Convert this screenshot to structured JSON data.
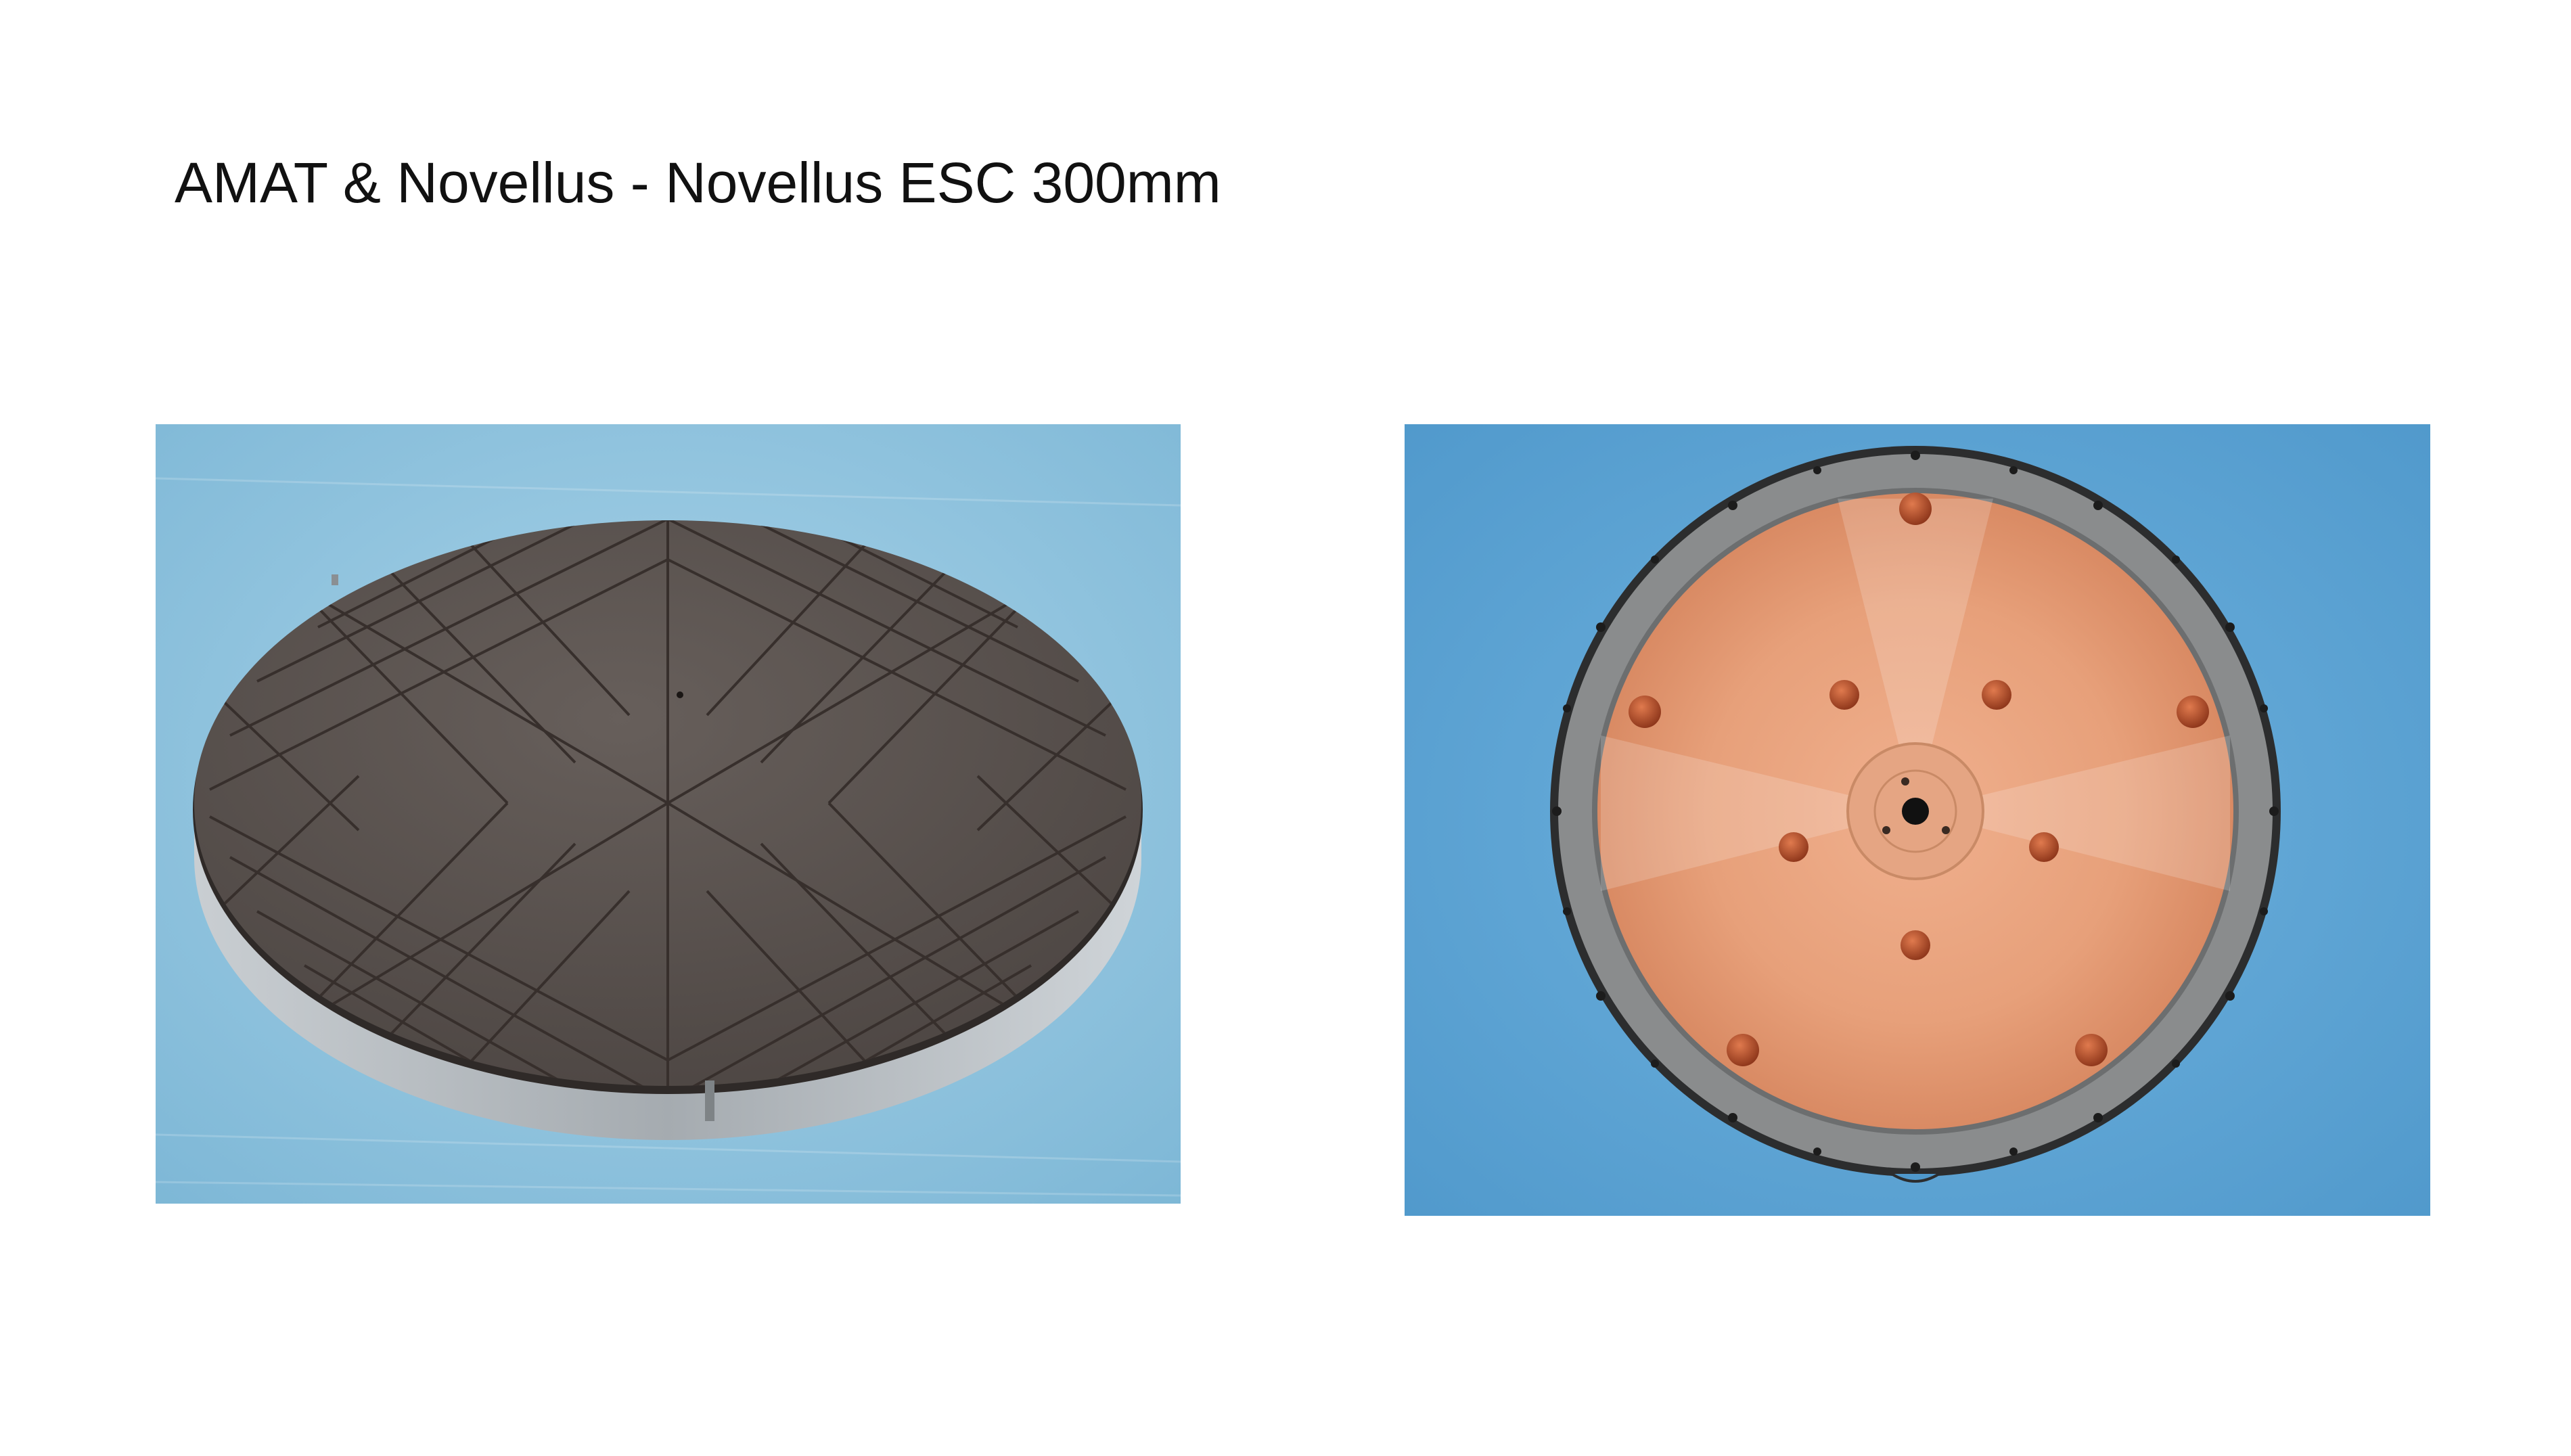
{
  "slide": {
    "title": "AMAT & Novellus - Novellus ESC 300mm"
  },
  "photos": [
    {
      "subject": "electrostatic chuck, top face (grey ceramic with herringbone groove pattern)",
      "colors": {
        "background": "#8fc3dd",
        "face": "#5b5450",
        "groove": "#3c3532",
        "rim": "#b3b8bc"
      }
    },
    {
      "subject": "electrostatic chuck, underside (copper base with lift pins, steel rim with bolt holes)",
      "colors": {
        "background": "#5fa6d6",
        "copper": "#e9a37d",
        "pin": "#b84f28",
        "rim": "#7d7f80"
      }
    }
  ]
}
